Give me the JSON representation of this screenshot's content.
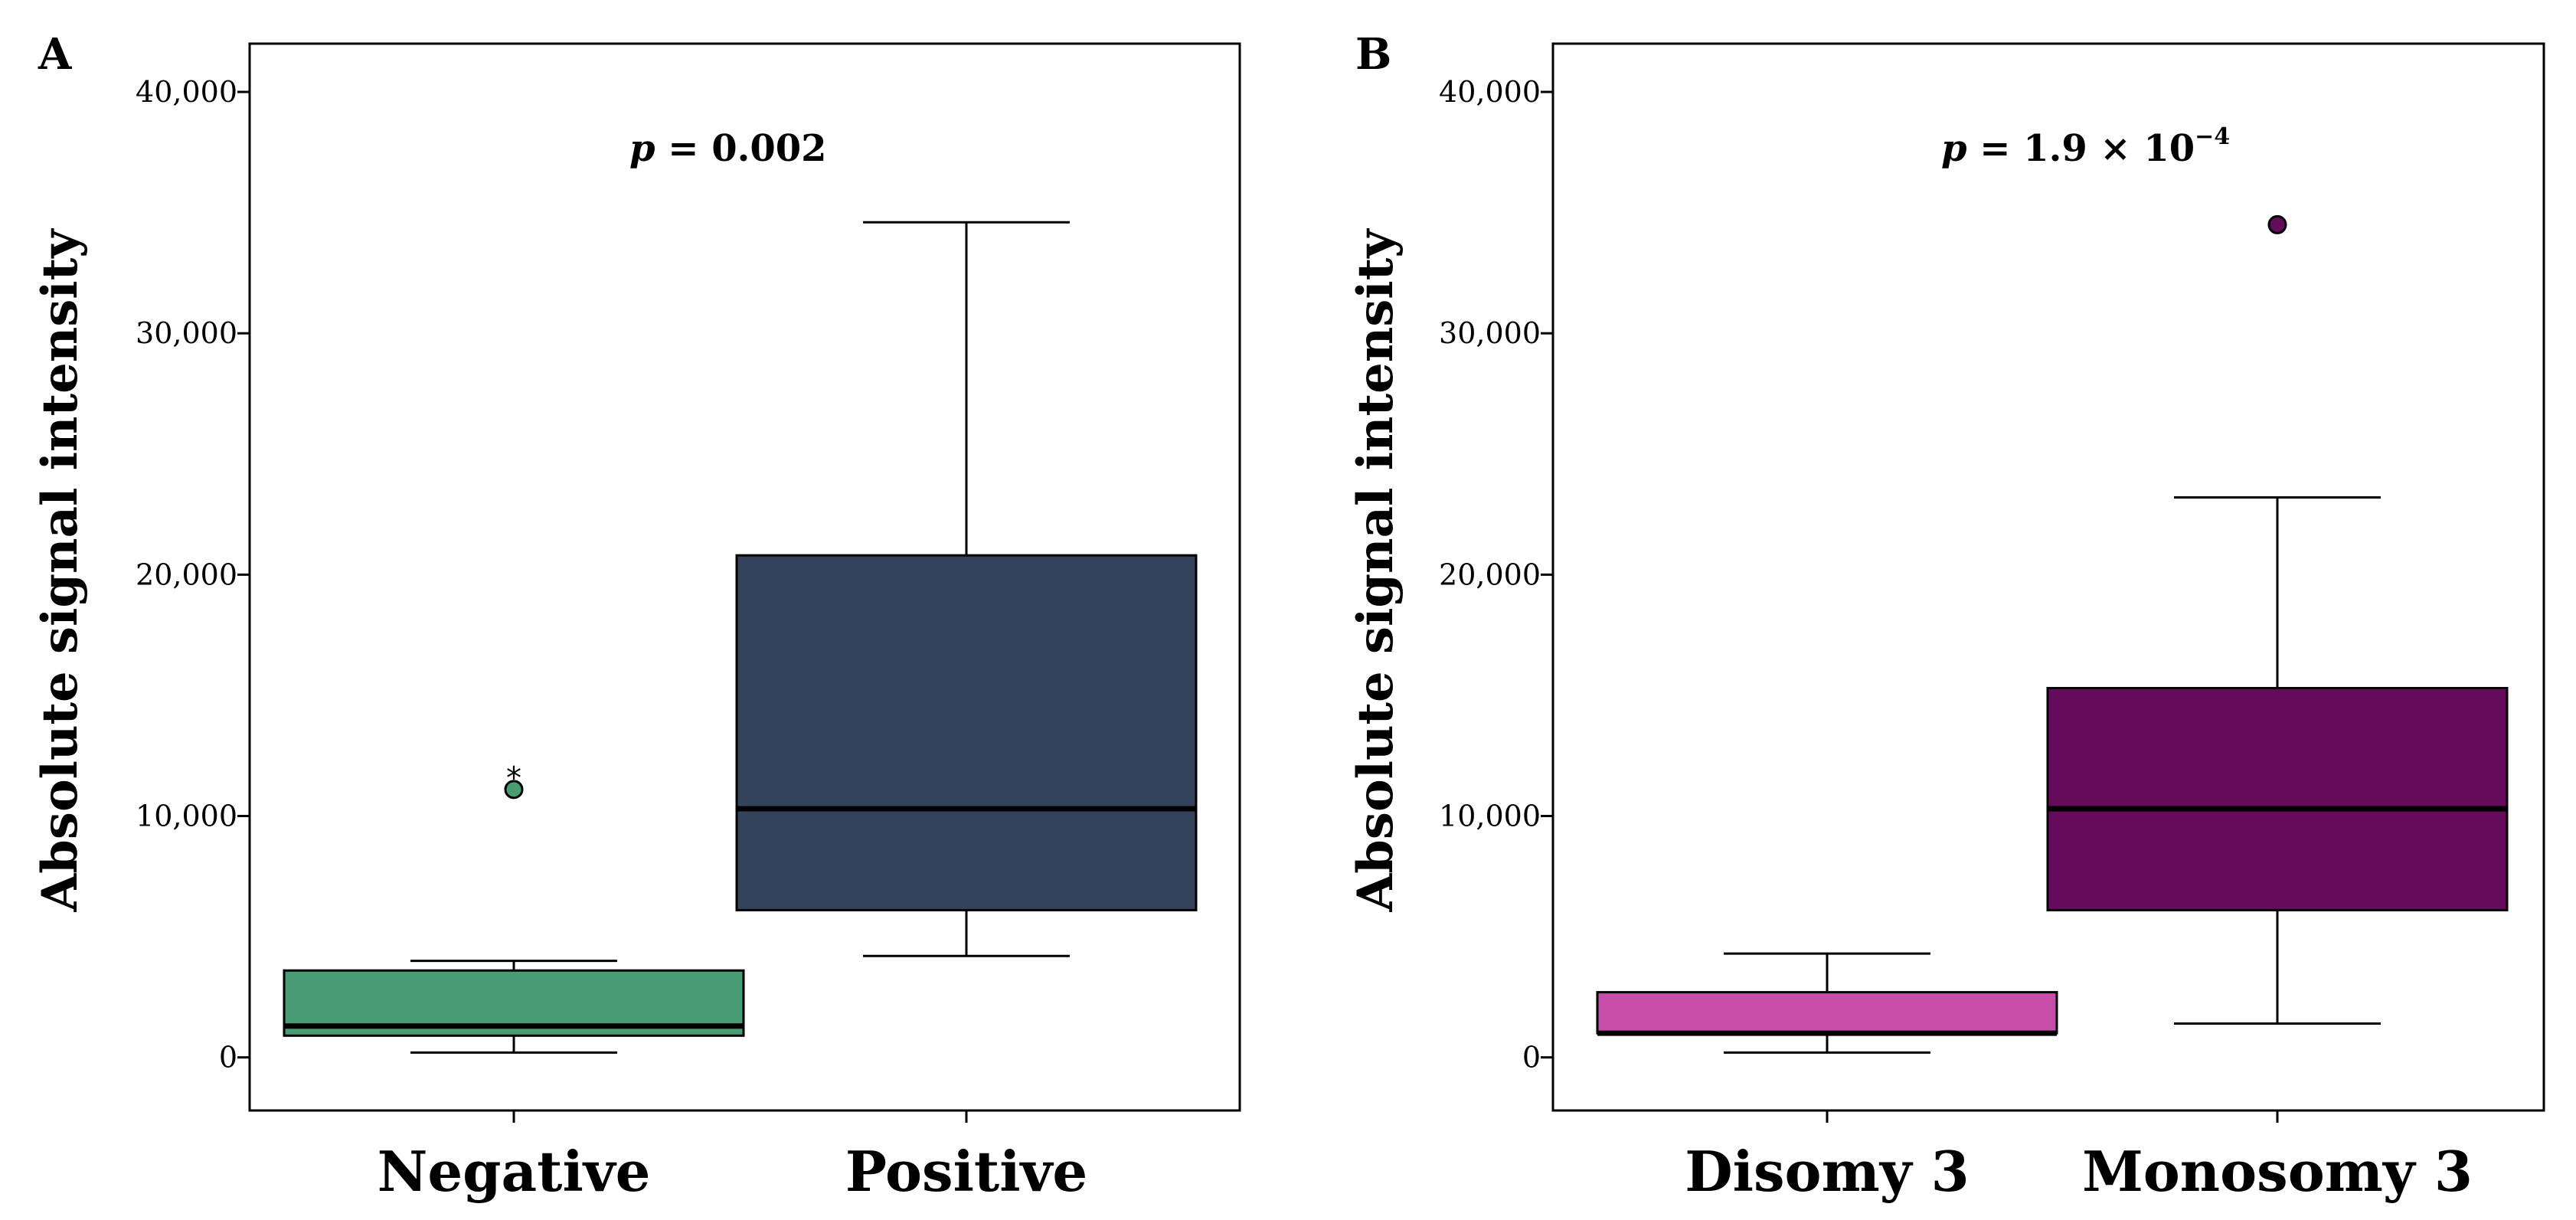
{
  "chart_data": [
    {
      "panel": "A",
      "type": "box",
      "ylabel": "Absolute signal intensity",
      "ylim": [
        -2200,
        42000
      ],
      "yticks": [
        {
          "value": 0,
          "label": "0"
        },
        {
          "value": 10000,
          "label": "10,000"
        },
        {
          "value": 20000,
          "label": "20,000"
        },
        {
          "value": 30000,
          "label": "30,000"
        },
        {
          "value": 40000,
          "label": "40,000"
        }
      ],
      "annotation": {
        "p": "p",
        "rest": " = 0.002",
        "sup": ""
      },
      "categories": [
        "Negative",
        "Positive"
      ],
      "boxes": [
        {
          "category": "Negative",
          "color": "#4a9c74",
          "whisker_low": 200,
          "q1": 900,
          "median": 1300,
          "q3": 3600,
          "whisker_high": 4000,
          "outliers": [
            {
              "value": 11100,
              "marker": "circle"
            }
          ],
          "extremes": [
            {
              "value": 11900,
              "marker": "*"
            }
          ]
        },
        {
          "category": "Positive",
          "color": "#34425c",
          "whisker_low": 4200,
          "q1": 6100,
          "median": 10300,
          "q3": 20800,
          "whisker_high": 34600,
          "outliers": [],
          "extremes": []
        }
      ]
    },
    {
      "panel": "B",
      "type": "box",
      "ylabel": "Absolute signal intensity",
      "ylim": [
        -2200,
        42000
      ],
      "yticks": [
        {
          "value": 0,
          "label": "0"
        },
        {
          "value": 10000,
          "label": "10,000"
        },
        {
          "value": 20000,
          "label": "20,000"
        },
        {
          "value": 30000,
          "label": "30,000"
        },
        {
          "value": 40000,
          "label": "40,000"
        }
      ],
      "annotation": {
        "p": "p",
        "rest": " = 1.9 × 10",
        "sup": "−4"
      },
      "categories": [
        "Disomy 3",
        "Monosomy 3"
      ],
      "boxes": [
        {
          "category": "Disomy 3",
          "color": "#c64ea9",
          "whisker_low": 200,
          "q1": 1000,
          "median": 1000,
          "q3": 2700,
          "whisker_high": 4300,
          "outliers": [],
          "extremes": []
        },
        {
          "category": "Monosomy 3",
          "color": "#650b5b",
          "whisker_low": 1400,
          "q1": 6100,
          "median": 10300,
          "q3": 15300,
          "whisker_high": 23200,
          "outliers": [
            {
              "value": 34500,
              "marker": "circle"
            }
          ],
          "extremes": []
        }
      ]
    }
  ]
}
